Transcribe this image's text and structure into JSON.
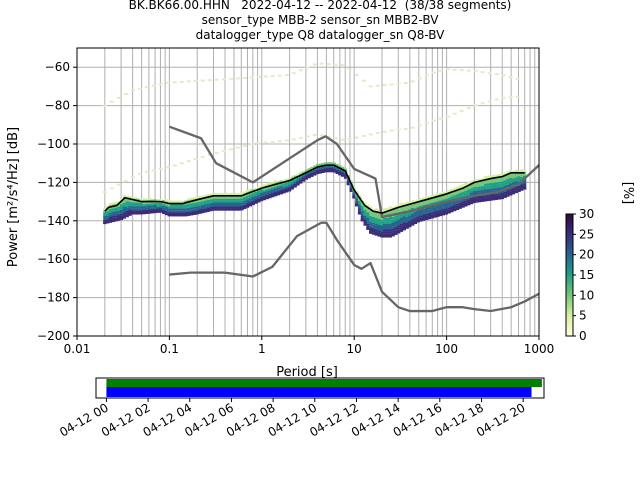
{
  "chart_data": {
    "type": "line",
    "title_lines": [
      "BK.BK66.00.HHN   2022-04-12 -- 2022-04-12  (38/38 segments)",
      "sensor_type MBB-2 sensor_sn MBB2-BV",
      "datalogger_type Q8 datalogger_sn Q8-BV"
    ],
    "xlabel": "Period [s]",
    "ylabel": "Power [m²/s⁴/Hz] [dB]",
    "x_scale": "log",
    "xlim": [
      0.01,
      1000
    ],
    "ylim": [
      -200,
      -50
    ],
    "x_ticks": [
      0.01,
      0.1,
      1,
      10,
      100,
      1000
    ],
    "x_tick_labels": [
      "0.01",
      "0.1",
      "1",
      "10",
      "100",
      "1000"
    ],
    "y_ticks": [
      -200,
      -180,
      -160,
      -140,
      -120,
      -100,
      -80,
      -60
    ],
    "grid": true,
    "series": [
      {
        "role": "high-noise-model",
        "color": "#666666",
        "points": [
          [
            0.1,
            -91
          ],
          [
            0.22,
            -97
          ],
          [
            0.32,
            -110
          ],
          [
            0.8,
            -120
          ],
          [
            4.0,
            -98
          ],
          [
            4.9,
            -96
          ],
          [
            6.5,
            -100
          ],
          [
            10,
            -113
          ],
          [
            17,
            -118
          ],
          [
            20,
            -138
          ],
          [
            40,
            -135
          ],
          [
            100,
            -130
          ],
          [
            200,
            -127
          ],
          [
            350,
            -125
          ],
          [
            600,
            -121
          ],
          [
            1000,
            -111
          ]
        ]
      },
      {
        "role": "low-noise-model",
        "color": "#666666",
        "points": [
          [
            0.1,
            -168
          ],
          [
            0.17,
            -167
          ],
          [
            0.4,
            -167
          ],
          [
            0.8,
            -169
          ],
          [
            1.3,
            -164
          ],
          [
            2.4,
            -148
          ],
          [
            4.4,
            -141
          ],
          [
            5.0,
            -141
          ],
          [
            6.5,
            -150
          ],
          [
            10,
            -163
          ],
          [
            12,
            -165
          ],
          [
            15,
            -162
          ],
          [
            20,
            -177
          ],
          [
            30,
            -185
          ],
          [
            40,
            -187
          ],
          [
            70,
            -187
          ],
          [
            100,
            -185
          ],
          [
            150,
            -185
          ],
          [
            200,
            -186
          ],
          [
            300,
            -187
          ],
          [
            500,
            -185
          ],
          [
            700,
            -182
          ],
          [
            1000,
            -178
          ]
        ]
      },
      {
        "role": "mean-psd",
        "color": "#000000",
        "points": [
          [
            0.02,
            -135
          ],
          [
            0.022,
            -133
          ],
          [
            0.027,
            -132
          ],
          [
            0.033,
            -128
          ],
          [
            0.05,
            -130
          ],
          [
            0.08,
            -130
          ],
          [
            0.1,
            -131
          ],
          [
            0.14,
            -131
          ],
          [
            0.2,
            -129
          ],
          [
            0.3,
            -127
          ],
          [
            0.6,
            -127
          ],
          [
            1,
            -123
          ],
          [
            2,
            -119
          ],
          [
            3,
            -115
          ],
          [
            4,
            -112
          ],
          [
            5,
            -111
          ],
          [
            6,
            -111
          ],
          [
            8,
            -114
          ],
          [
            10,
            -124
          ],
          [
            13,
            -132
          ],
          [
            16,
            -135
          ],
          [
            20,
            -136
          ],
          [
            30,
            -133
          ],
          [
            60,
            -129
          ],
          [
            100,
            -126
          ],
          [
            150,
            -123
          ],
          [
            200,
            -120
          ],
          [
            300,
            -118
          ],
          [
            400,
            -117
          ],
          [
            500,
            -115
          ],
          [
            700,
            -115
          ]
        ]
      },
      {
        "role": "mode-psd",
        "color": "#2c0f5f",
        "points": [
          [
            0.02,
            -141
          ],
          [
            0.03,
            -139
          ],
          [
            0.04,
            -136
          ],
          [
            0.05,
            -136
          ],
          [
            0.08,
            -135
          ],
          [
            0.1,
            -137
          ],
          [
            0.15,
            -137
          ],
          [
            0.2,
            -136
          ],
          [
            0.3,
            -134
          ],
          [
            0.6,
            -134
          ],
          [
            1,
            -129
          ],
          [
            2,
            -124
          ],
          [
            3,
            -118
          ],
          [
            4,
            -115
          ],
          [
            5,
            -114
          ],
          [
            6,
            -114
          ],
          [
            8,
            -117
          ],
          [
            10,
            -128
          ],
          [
            12,
            -139
          ],
          [
            15,
            -146
          ],
          [
            20,
            -148
          ],
          [
            25,
            -148
          ],
          [
            30,
            -146
          ],
          [
            50,
            -140
          ],
          [
            100,
            -136
          ],
          [
            200,
            -130
          ],
          [
            400,
            -128
          ],
          [
            700,
            -123
          ]
        ]
      },
      {
        "role": "envelope-upper",
        "color": "#e2ecc8",
        "points": [
          [
            0.02,
            -80
          ],
          [
            0.04,
            -72
          ],
          [
            0.1,
            -68
          ],
          [
            0.5,
            -66
          ],
          [
            2,
            -64
          ],
          [
            4,
            -58
          ],
          [
            8,
            -59
          ],
          [
            15,
            -70
          ],
          [
            25,
            -69
          ],
          [
            40,
            -68
          ],
          [
            70,
            -63
          ],
          [
            100,
            -61
          ],
          [
            200,
            -62
          ],
          [
            400,
            -64
          ],
          [
            700,
            -67
          ]
        ]
      },
      {
        "role": "envelope-lower",
        "color": "#e2ecc8",
        "points": [
          [
            0.02,
            -125
          ],
          [
            0.05,
            -115
          ],
          [
            0.1,
            -112
          ],
          [
            0.3,
            -105
          ],
          [
            0.8,
            -100
          ],
          [
            2,
            -98
          ],
          [
            4,
            -95
          ],
          [
            8,
            -98
          ],
          [
            15,
            -95
          ],
          [
            25,
            -93
          ],
          [
            40,
            -92
          ],
          [
            70,
            -88
          ],
          [
            100,
            -86
          ],
          [
            200,
            -80
          ],
          [
            400,
            -76
          ],
          [
            700,
            -75
          ]
        ]
      }
    ],
    "colorbar": {
      "label": "[%]",
      "range": [
        0,
        30
      ],
      "ticks": [
        0,
        5,
        10,
        15,
        20,
        25,
        30
      ],
      "colors": [
        "#ffffe0",
        "#d9f0a3",
        "#78c679",
        "#1fa187",
        "#26658e",
        "#3b2d7a",
        "#2b0a3d"
      ]
    },
    "timeline": {
      "tick_labels": [
        "04-12 00",
        "04-12 02",
        "04-12 04",
        "04-12 06",
        "04-12 08",
        "04-12 10",
        "04-12 12",
        "04-12 14",
        "04-12 16",
        "04-12 18",
        "04-12 20"
      ],
      "tick_hours": [
        0,
        2,
        4,
        6,
        8,
        10,
        12,
        14,
        16,
        18,
        20
      ],
      "window_hours": [
        -0.5,
        21.0
      ],
      "bars": [
        {
          "color": "#008000",
          "start_hour": 0.0,
          "end_hour": 20.9
        },
        {
          "color": "#0000ff",
          "start_hour": 0.0,
          "end_hour": 20.4
        }
      ]
    }
  }
}
